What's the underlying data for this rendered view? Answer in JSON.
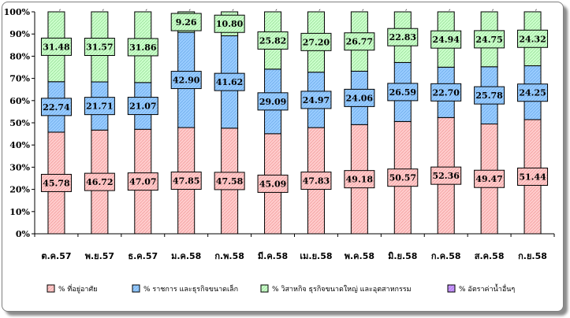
{
  "chart_data": {
    "type": "bar",
    "stacked": true,
    "percent": true,
    "categories": [
      "ต.ค.57",
      "พ.ย.57",
      "ธ.ค.57",
      "ม.ค.58",
      "ก.พ.58",
      "มี.ค.58",
      "เม.ย.58",
      "พ.ค.58",
      "มิ.ย.58",
      "ก.ค.58",
      "ส.ค.58",
      "ก.ย.58"
    ],
    "series": [
      {
        "name": "% ที่อยู่อาศัย",
        "color": "#ffcccc",
        "values": [
          45.78,
          46.72,
          47.07,
          47.85,
          47.58,
          45.09,
          47.83,
          49.18,
          50.57,
          52.36,
          49.47,
          51.44
        ]
      },
      {
        "name": "% ราชการ และธุรกิจขนาดเล็ก",
        "color": "#99ccff",
        "values": [
          22.74,
          21.71,
          21.07,
          42.9,
          41.62,
          29.09,
          24.97,
          24.06,
          26.59,
          22.7,
          25.78,
          24.25
        ]
      },
      {
        "name": "% วิสาหกิจ ธุรกิจขนาดใหญ่ และอุตสาหกรรม",
        "color": "#ccffcc",
        "values": [
          31.48,
          31.57,
          31.86,
          9.26,
          10.8,
          25.82,
          27.2,
          26.77,
          22.83,
          24.94,
          24.75,
          24.32
        ]
      },
      {
        "name": "% อัตราค่าน้ำอื่นๆ",
        "color": "#cc99ff",
        "values": [
          0,
          0,
          0,
          0,
          0,
          0,
          0,
          0,
          0,
          0,
          0,
          0
        ]
      }
    ],
    "yticks": [
      "0%",
      "10%",
      "20%",
      "30%",
      "40%",
      "50%",
      "60%",
      "70%",
      "80%",
      "90%",
      "100%"
    ],
    "ylim": [
      0,
      100
    ],
    "legend_position": "bottom",
    "title": "",
    "xlabel": "",
    "ylabel": ""
  }
}
